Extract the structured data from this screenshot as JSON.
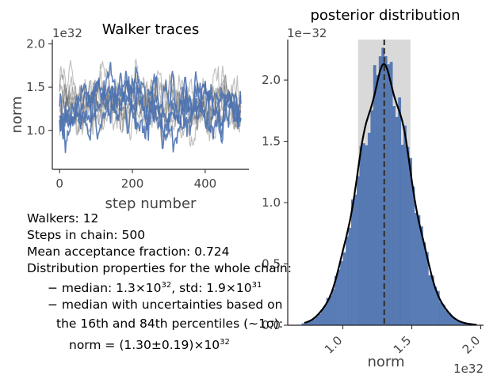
{
  "chart_data": [
    {
      "type": "line",
      "title": "Walker traces",
      "xlabel": "step number",
      "ylabel": "norm",
      "y_offset_label": "1e32",
      "xlim": [
        -20,
        520
      ],
      "ylim": [
        0.55,
        2.05
      ],
      "xticks": [
        "0",
        "200",
        "400"
      ],
      "xtick_values": [
        0,
        200,
        400
      ],
      "yticks": [
        "1.0",
        "1.5",
        "2.0"
      ],
      "ytick_values": [
        1.0,
        1.5,
        2.0
      ],
      "n_walkers": 12,
      "n_steps": 500,
      "highlight_walkers": 4,
      "colors": {
        "highlight": "#4c72b0",
        "other": "#555555"
      }
    },
    {
      "type": "bar",
      "title": "posterior distribution",
      "xlabel": "norm",
      "x_offset_label": "1e32",
      "y_offset_label": "1e−32",
      "xlim": [
        0.6,
        2.02
      ],
      "ylim": [
        0,
        2.33
      ],
      "xticks": [
        "1.0",
        "1.5",
        "2.0"
      ],
      "xtick_values": [
        1.0,
        1.5,
        2.0
      ],
      "yticks": [
        "0.0",
        "0.5",
        "1.0",
        "1.5",
        "2.0"
      ],
      "ytick_values": [
        0.0,
        0.5,
        1.0,
        1.5,
        2.0
      ],
      "median": 1.3,
      "std": 0.19,
      "percentile_16": 1.11,
      "percentile_84": 1.49,
      "peak_density": 2.07,
      "colors": {
        "bars": "#4c72b0",
        "band": "#d9d9d9",
        "kde": "#000000",
        "median": "#333333"
      }
    }
  ],
  "info": {
    "walkers": "Walkers: 12",
    "steps": "Steps in chain: 500",
    "acceptance": "Mean acceptance fraction: 0.724",
    "dist_props": "Distribution properties for the whole chain:",
    "median_label": "− median: 1.3×10",
    "median_exp": "32",
    "std_label": ", std: 1.9×10",
    "std_exp": "31",
    "unc_line1": "− median with uncertainties based on",
    "unc_line2": "the 16th and 84th percentiles (∼1σ):",
    "norm_result": "norm = (1.30±0.19)×10",
    "norm_exp": "32"
  }
}
